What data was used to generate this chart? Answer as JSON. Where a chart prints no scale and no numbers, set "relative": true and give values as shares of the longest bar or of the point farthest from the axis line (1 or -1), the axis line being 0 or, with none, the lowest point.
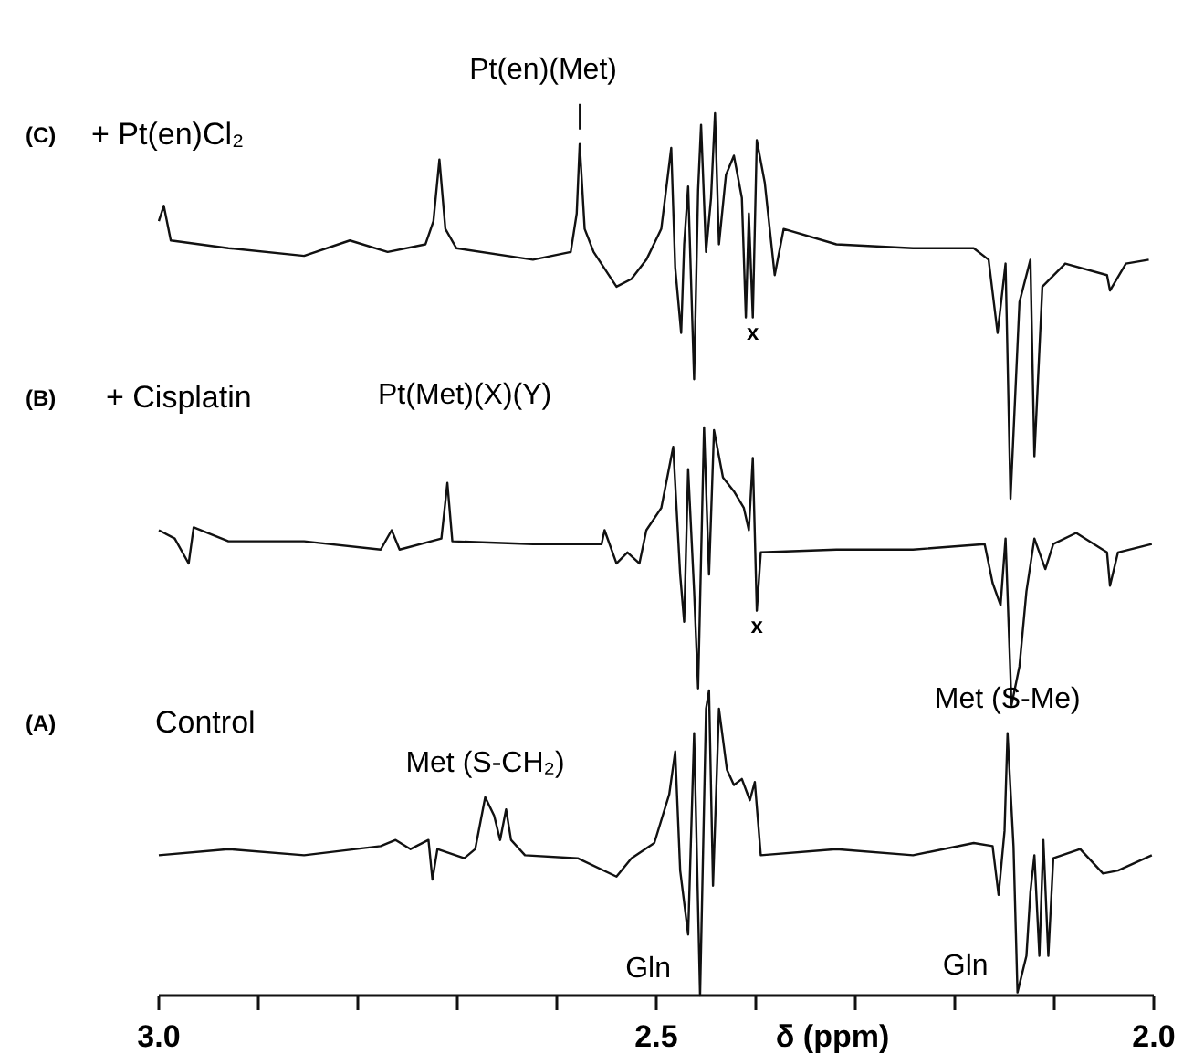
{
  "chart_data": [
    {
      "type": "line",
      "title": "(C)",
      "subtitle": "+ Pt(en)Cl₂",
      "relative": true,
      "xlim": [
        3.0,
        2.0
      ],
      "tick_labels": false,
      "line_style": "solid",
      "marker": "none",
      "series": [
        {
          "color": "#111111",
          "x": [
            3.0,
            2.995,
            2.988,
            2.93,
            2.854,
            2.808,
            2.77,
            2.732,
            2.724,
            2.718,
            2.712,
            2.701,
            2.624,
            2.586,
            2.58,
            2.577,
            2.572,
            2.563,
            2.54,
            2.525,
            2.51,
            2.495,
            2.485,
            2.481,
            2.475,
            2.472,
            2.468,
            2.462,
            2.458,
            2.455,
            2.45,
            2.445,
            2.441,
            2.437,
            2.43,
            2.422,
            2.414,
            2.41,
            2.407,
            2.403,
            2.399,
            2.391,
            2.381,
            2.372,
            2.319,
            2.242,
            2.181,
            2.166,
            2.157,
            2.149,
            2.144,
            2.135,
            2.124,
            2.12,
            2.112,
            2.089,
            2.047,
            2.044,
            2.028,
            2.005
          ],
          "values": [
            0.72,
            0.76,
            0.67,
            0.65,
            0.63,
            0.67,
            0.64,
            0.66,
            0.72,
            0.88,
            0.7,
            0.65,
            0.62,
            0.64,
            0.74,
            0.92,
            0.7,
            0.64,
            0.55,
            0.57,
            0.62,
            0.7,
            0.91,
            0.6,
            0.43,
            0.66,
            0.81,
            0.31,
            0.8,
            0.97,
            0.64,
            0.78,
            1.0,
            0.66,
            0.84,
            0.89,
            0.78,
            0.47,
            0.74,
            0.47,
            0.93,
            0.82,
            0.58,
            0.7,
            0.66,
            0.65,
            0.65,
            0.62,
            0.43,
            0.61,
            0.0,
            0.51,
            0.62,
            0.11,
            0.55,
            0.61,
            0.58,
            0.54,
            0.61,
            0.62
          ]
        }
      ],
      "annotations": [
        {
          "text": "Pt(en)(Met)",
          "x": 2.577,
          "y": 0.92
        },
        {
          "text": "x",
          "x": 2.403,
          "y": 0.47
        },
        "Pt(Met)(X)(Y)"
      ]
    },
    {
      "type": "line",
      "title": "(B)",
      "subtitle": "+ Cisplatin",
      "relative": true,
      "xlim": [
        3.0,
        2.0
      ],
      "tick_labels": false,
      "line_style": "solid",
      "marker": "none",
      "series": [
        {
          "color": "#111111",
          "x": [
            3.0,
            2.984,
            2.97,
            2.965,
            2.93,
            2.854,
            2.777,
            2.766,
            2.758,
            2.716,
            2.71,
            2.705,
            2.624,
            2.555,
            2.552,
            2.54,
            2.529,
            2.517,
            2.51,
            2.495,
            2.483,
            2.476,
            2.472,
            2.468,
            2.462,
            2.458,
            2.452,
            2.447,
            2.442,
            2.433,
            2.422,
            2.412,
            2.407,
            2.403,
            2.399,
            2.395,
            2.319,
            2.242,
            2.17,
            2.162,
            2.154,
            2.149,
            2.143,
            2.135,
            2.128,
            2.12,
            2.109,
            2.101,
            2.078,
            2.047,
            2.044,
            2.036,
            2.002
          ],
          "values": [
            0.63,
            0.6,
            0.51,
            0.64,
            0.59,
            0.59,
            0.56,
            0.63,
            0.56,
            0.6,
            0.8,
            0.59,
            0.58,
            0.58,
            0.63,
            0.51,
            0.55,
            0.51,
            0.63,
            0.71,
            0.93,
            0.47,
            0.3,
            0.85,
            0.41,
            0.06,
            1.0,
            0.47,
            0.99,
            0.82,
            0.77,
            0.71,
            0.63,
            0.89,
            0.34,
            0.55,
            0.56,
            0.56,
            0.58,
            0.44,
            0.36,
            0.6,
            0.0,
            0.14,
            0.41,
            0.6,
            0.49,
            0.58,
            0.62,
            0.55,
            0.43,
            0.55,
            0.58
          ]
        }
      ],
      "annotations": [
        {
          "text": "x",
          "x": 2.399,
          "y": 0.34
        }
      ]
    },
    {
      "type": "line",
      "title": "(A)",
      "subtitle": "Control",
      "relative": true,
      "xlim": [
        3.0,
        2.0
      ],
      "xticks": [
        {
          "value": 3.0,
          "label": "3.0"
        },
        {
          "value": 2.9,
          "label": null
        },
        {
          "value": 2.8,
          "label": null
        },
        {
          "value": 2.7,
          "label": null
        },
        {
          "value": 2.6,
          "label": null
        },
        {
          "value": 2.5,
          "label": "2.5"
        },
        {
          "value": 2.4,
          "label": null
        },
        {
          "value": 2.3,
          "label": null
        },
        {
          "value": 2.2,
          "label": null
        },
        {
          "value": 2.1,
          "label": null
        },
        {
          "value": 2.0,
          "label": "2.0"
        }
      ],
      "xlabel": "δ (ppm)",
      "tick_labels": "x",
      "line_style": "solid",
      "marker": "none",
      "series": [
        {
          "color": "#111111",
          "x": [
            3.0,
            2.93,
            2.854,
            2.777,
            2.762,
            2.747,
            2.729,
            2.725,
            2.72,
            2.693,
            2.682,
            2.672,
            2.663,
            2.657,
            2.651,
            2.646,
            2.632,
            2.579,
            2.54,
            2.525,
            2.502,
            2.487,
            2.481,
            2.476,
            2.468,
            2.462,
            2.456,
            2.45,
            2.447,
            2.443,
            2.437,
            2.429,
            2.422,
            2.414,
            2.406,
            2.401,
            2.395,
            2.319,
            2.242,
            2.181,
            2.162,
            2.156,
            2.15,
            2.147,
            2.141,
            2.137,
            2.128,
            2.124,
            2.12,
            2.115,
            2.111,
            2.106,
            2.101,
            2.074,
            2.051,
            2.036,
            2.002
          ],
          "values": [
            0.46,
            0.48,
            0.46,
            0.49,
            0.51,
            0.48,
            0.51,
            0.38,
            0.48,
            0.45,
            0.48,
            0.65,
            0.59,
            0.51,
            0.61,
            0.51,
            0.46,
            0.45,
            0.39,
            0.45,
            0.5,
            0.66,
            0.8,
            0.41,
            0.2,
            0.86,
            0.0,
            0.94,
            1.0,
            0.36,
            0.94,
            0.74,
            0.69,
            0.71,
            0.64,
            0.7,
            0.46,
            0.48,
            0.46,
            0.5,
            0.49,
            0.33,
            0.54,
            0.86,
            0.49,
            0.01,
            0.13,
            0.34,
            0.46,
            0.13,
            0.51,
            0.13,
            0.45,
            0.48,
            0.4,
            0.41,
            0.46
          ]
        }
      ],
      "annotations": [
        {
          "text": "Met (S-CH₂)",
          "x": 2.672,
          "y": 0.65
        },
        {
          "text": "Met (S-Me)",
          "x": 2.147,
          "y": 0.86
        },
        {
          "text": "Gln",
          "x": 2.456,
          "y": 0.0
        },
        {
          "text": "Gln",
          "x": 2.137,
          "y": 0.01
        }
      ]
    }
  ]
}
